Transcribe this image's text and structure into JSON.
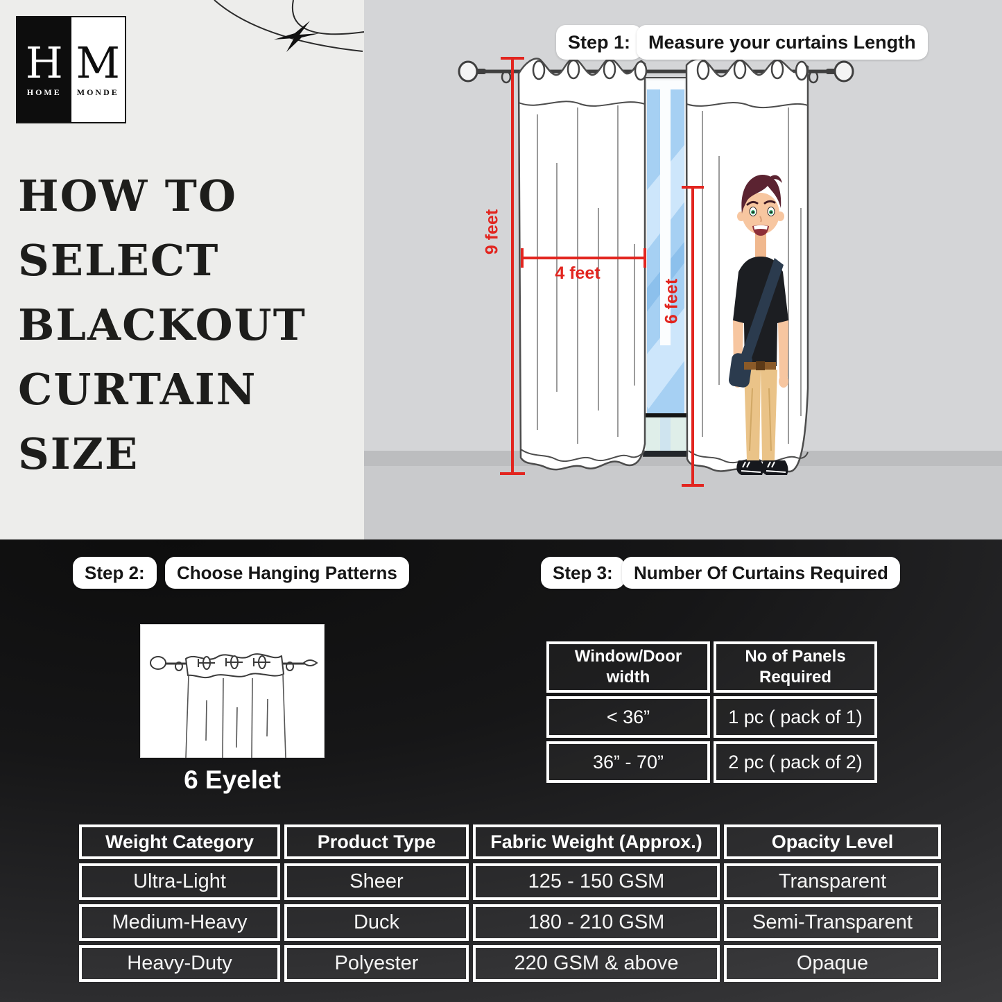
{
  "brand": {
    "letter_left": "H",
    "word_left": "HOME",
    "letter_right": "M",
    "word_right": "MONDE"
  },
  "title": {
    "lines": [
      "HOW TO",
      "SELECT",
      "BLACKOUT",
      "CURTAIN",
      "SIZE"
    ]
  },
  "steps": {
    "step1": {
      "label": "Step 1:",
      "text": "Measure your curtains Length"
    },
    "step2": {
      "label": "Step 2:",
      "text": "Choose Hanging Patterns"
    },
    "step3": {
      "label": "Step 3:",
      "text": "Number Of Curtains Required"
    }
  },
  "measurements": {
    "curtain_height": "9 feet",
    "curtain_width": "4 feet",
    "person_height": "6 feet"
  },
  "hanging": {
    "pattern_label": "6 Eyelet"
  },
  "panels_table": {
    "headers": [
      "Window/Door width",
      "No of Panels Required"
    ],
    "rows": [
      [
        "<  36”",
        "1 pc ( pack of 1)"
      ],
      [
        "36” - 70”",
        "2 pc ( pack of 2)"
      ]
    ]
  },
  "fabric_table": {
    "headers": [
      "Weight Category",
      "Product Type",
      "Fabric Weight (Approx.)",
      "Opacity Level"
    ],
    "rows": [
      [
        "Ultra-Light",
        "Sheer",
        "125 - 150 GSM",
        "Transparent"
      ],
      [
        "Medium-Heavy",
        "Duck",
        "180 - 210 GSM",
        "Semi-Transparent"
      ],
      [
        "Heavy-Duty",
        "Polyester",
        "220  GSM & above",
        "Opaque"
      ]
    ]
  },
  "colors": {
    "accent_red": "#e2251f",
    "light_panel": "#ededeb",
    "wall_gray": "#d4d5d7",
    "dark_bg": "#161617",
    "pill_bg": "#ffffff"
  }
}
